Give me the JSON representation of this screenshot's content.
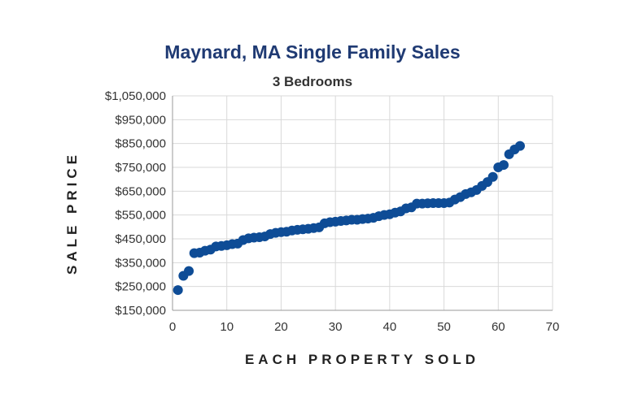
{
  "chart_data": {
    "type": "scatter",
    "title": "Maynard, MA Single Family Sales",
    "subtitle": "3 Bedrooms",
    "xlabel": "EACH PROPERTY SOLD",
    "ylabel": "SALE PRICE",
    "xlim": [
      0,
      70
    ],
    "ylim": [
      150000,
      1050000
    ],
    "x_ticks": [
      0,
      10,
      20,
      30,
      40,
      50,
      60,
      70
    ],
    "x_tick_labels": [
      "0",
      "10",
      "20",
      "30",
      "40",
      "50",
      "60",
      "70"
    ],
    "y_ticks": [
      150000,
      250000,
      350000,
      450000,
      550000,
      650000,
      750000,
      850000,
      950000,
      1050000
    ],
    "y_tick_labels": [
      "$150,000",
      "$250,000",
      "$350,000",
      "$450,000",
      "$550,000",
      "$650,000",
      "$750,000",
      "$850,000",
      "$950,000",
      "$1,050,000"
    ],
    "grid": true,
    "marker_color": "#0e4c96",
    "x": [
      1,
      2,
      3,
      4,
      5,
      6,
      7,
      8,
      9,
      10,
      11,
      12,
      13,
      14,
      15,
      16,
      17,
      18,
      19,
      20,
      21,
      22,
      23,
      24,
      25,
      26,
      27,
      28,
      29,
      30,
      31,
      32,
      33,
      34,
      35,
      36,
      37,
      38,
      39,
      40,
      41,
      42,
      43,
      44,
      45,
      46,
      47,
      48,
      49,
      50,
      51,
      52,
      53,
      54,
      55,
      56,
      57,
      58,
      59,
      60,
      61,
      62,
      63,
      64
    ],
    "y": [
      235000,
      295000,
      315000,
      390000,
      392000,
      400000,
      405000,
      418000,
      420000,
      423000,
      428000,
      430000,
      445000,
      452000,
      455000,
      457000,
      460000,
      470000,
      475000,
      478000,
      480000,
      485000,
      488000,
      490000,
      492000,
      495000,
      498000,
      515000,
      520000,
      522000,
      525000,
      527000,
      530000,
      530000,
      533000,
      535000,
      538000,
      545000,
      550000,
      553000,
      560000,
      565000,
      578000,
      582000,
      598000,
      598000,
      599000,
      600000,
      600000,
      600000,
      602000,
      615000,
      625000,
      638000,
      645000,
      655000,
      672000,
      688000,
      710000,
      750000,
      760000,
      805000,
      825000,
      840000
    ]
  }
}
